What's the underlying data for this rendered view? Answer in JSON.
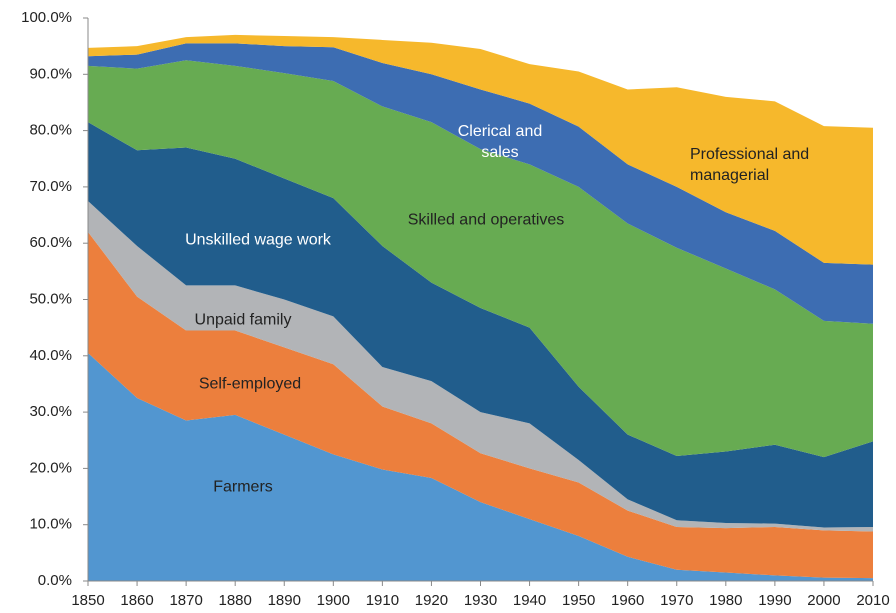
{
  "chart_data": {
    "type": "stacked_area",
    "x": [
      1850,
      1860,
      1870,
      1880,
      1890,
      1900,
      1910,
      1920,
      1930,
      1940,
      1950,
      1960,
      1970,
      1980,
      1990,
      2000,
      2010
    ],
    "xlim": [
      1850,
      2010
    ],
    "xticks": [
      1850,
      1860,
      1870,
      1880,
      1890,
      1900,
      1910,
      1920,
      1930,
      1940,
      1950,
      1960,
      1970,
      1980,
      1990,
      2000,
      2010
    ],
    "ylim": [
      0,
      100
    ],
    "yticks": [
      {
        "value": 0,
        "label": "0.0%"
      },
      {
        "value": 10,
        "label": "10.0%"
      },
      {
        "value": 20,
        "label": "20.0%"
      },
      {
        "value": 30,
        "label": "30.0%"
      },
      {
        "value": 40,
        "label": "40.0%"
      },
      {
        "value": 50,
        "label": "50.0%"
      },
      {
        "value": 60,
        "label": "60.0%"
      },
      {
        "value": 70,
        "label": "70.0%"
      },
      {
        "value": 80,
        "label": "80.0%"
      },
      {
        "value": 90,
        "label": "90.0%"
      },
      {
        "value": 100,
        "label": "100.0%"
      }
    ],
    "series": [
      {
        "name": "Farmers",
        "color": "#5296d0",
        "values": [
          40.5,
          32.5,
          28.5,
          29.5,
          26,
          22.5,
          19.8,
          18.3,
          14,
          11,
          8,
          4.3,
          2,
          1.5,
          1,
          0.6,
          0.5
        ]
      },
      {
        "name": "Self-employed",
        "color": "#ec7f3d",
        "values": [
          21.5,
          18,
          16,
          15,
          15.5,
          16,
          11.2,
          9.7,
          8.7,
          9,
          9.5,
          8.2,
          7.6,
          7.9,
          8.6,
          8.4,
          8.3
        ]
      },
      {
        "name": "Unpaid family",
        "color": "#b2b4b7",
        "values": [
          5.5,
          9,
          8,
          8,
          8.5,
          8.5,
          7,
          7.5,
          7.3,
          8,
          4,
          2,
          1.2,
          0.9,
          0.6,
          0.5,
          0.8
        ]
      },
      {
        "name": "Unskilled wage work",
        "color": "#215d8c",
        "values": [
          14,
          17,
          24.5,
          22.5,
          21.5,
          21,
          21.5,
          17.5,
          18.5,
          17,
          13,
          11.5,
          11.4,
          12.7,
          14,
          12.5,
          15.2
        ]
      },
      {
        "name": "Skilled and operatives",
        "color": "#67ab52",
        "values": [
          10,
          14.5,
          15.5,
          16.5,
          18.7,
          20.8,
          24.8,
          28.5,
          28.2,
          29,
          35.5,
          37.5,
          37,
          32.5,
          27.6,
          24.2,
          20.9
        ]
      },
      {
        "name": "Clerical and sales",
        "color": "#3d6db2",
        "values": [
          1.7,
          2.5,
          3,
          4,
          4.8,
          6,
          7.7,
          8.5,
          10.6,
          10.8,
          10.7,
          10.5,
          10.8,
          10,
          10.4,
          10.3,
          10.5
        ]
      },
      {
        "name": "Professional and managerial",
        "color": "#f6b82c",
        "values": [
          1.5,
          1.5,
          1.1,
          1.5,
          1.8,
          1.8,
          4.1,
          5.6,
          7.2,
          7,
          9.8,
          13.3,
          17.7,
          20.5,
          23,
          24.3,
          24.3
        ]
      }
    ]
  }
}
